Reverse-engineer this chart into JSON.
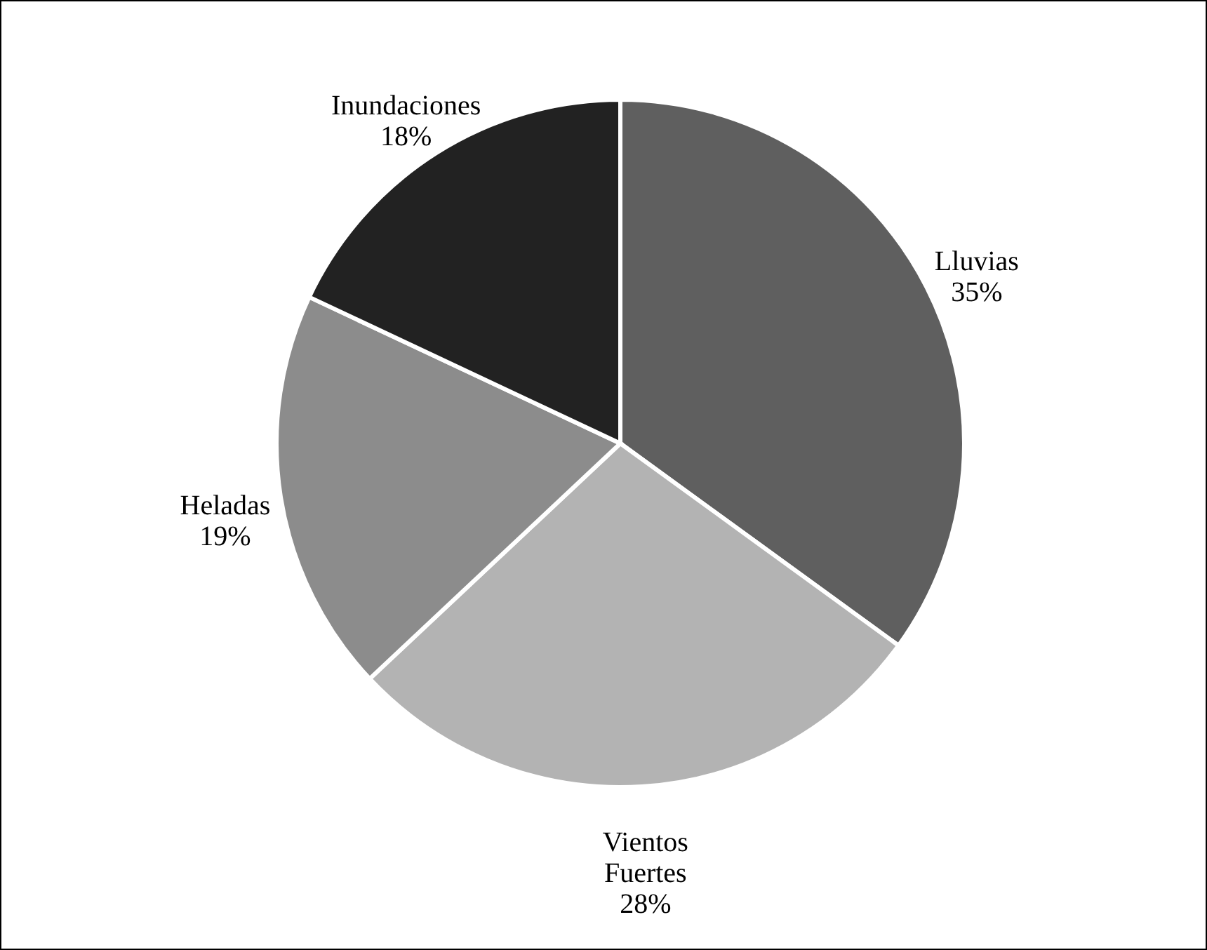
{
  "chart_data": {
    "type": "pie",
    "categories": [
      "Lluvias",
      "Vientos Fuertes",
      "Heladas",
      "Inundaciones"
    ],
    "values": [
      35,
      28,
      19,
      18
    ],
    "value_labels": [
      "35%",
      "28%",
      "19%",
      "18%"
    ],
    "colors": [
      "#5f5f5f",
      "#b3b3b3",
      "#8c8c8c",
      "#222222"
    ]
  }
}
